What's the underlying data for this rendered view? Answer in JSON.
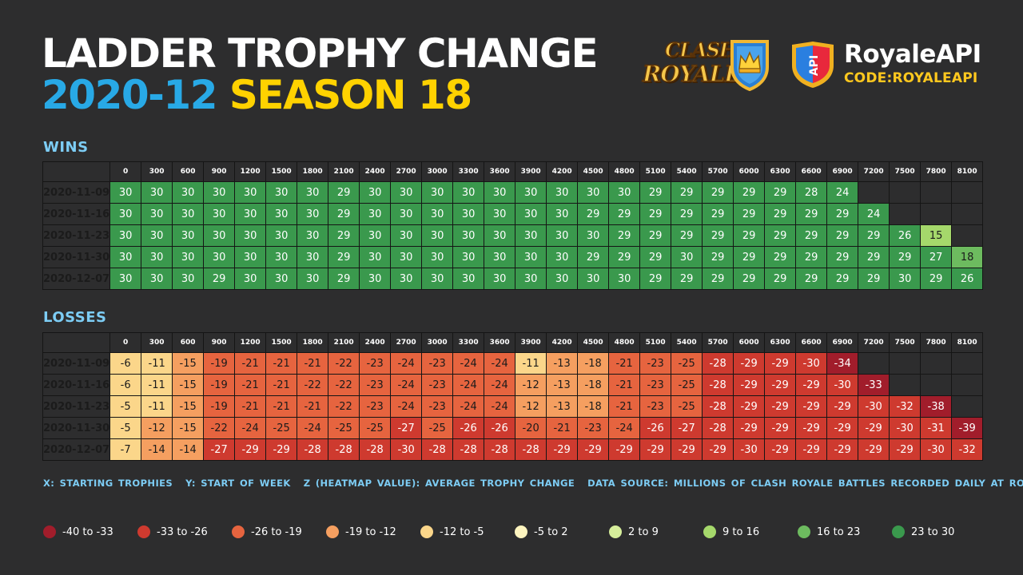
{
  "title": {
    "line1": "LADDER TROPHY CHANGE",
    "date": "2020-12",
    "season": "SEASON 18"
  },
  "logos": {
    "clash_royale": {
      "word1": "CLASH",
      "word2": "ROYALE",
      "icon": "crown-shield-icon"
    },
    "royaleapi": {
      "name": "RoyaleAPI",
      "code": "CODE:ROYALEAPI",
      "shield_text": "API",
      "icon": "api-shield-icon"
    }
  },
  "notes": {
    "x": "X: STARTING TROPHIES",
    "y": "Y: START OF WEEK",
    "z": "Z (HEATMAP VALUE): AVERAGE TROPHY CHANGE",
    "source": "DATA SOURCE: MILLIONS OF CLASH ROYALE BATTLES RECORDED DAILY AT ROYALEAPI"
  },
  "legend": [
    {
      "label": "-40 to -33",
      "color": "#a11d2b"
    },
    {
      "label": "-33 to -26",
      "color": "#ce3a2f"
    },
    {
      "label": "-26 to -19",
      "color": "#e6643f"
    },
    {
      "label": "-19 to -12",
      "color": "#f59f60"
    },
    {
      "label": "-12 to -5",
      "color": "#fbd68a"
    },
    {
      "label": "-5 to 2",
      "color": "#fdf4bf"
    },
    {
      "label": "2 to 9",
      "color": "#d6ee9b"
    },
    {
      "label": "9 to 16",
      "color": "#a5d86b"
    },
    {
      "label": "16 to 23",
      "color": "#6dbb5f"
    },
    {
      "label": "23 to 30",
      "color": "#3a994d"
    }
  ],
  "chart_data": [
    {
      "type": "heatmap",
      "title": "WINS",
      "x": [
        "0",
        "300",
        "600",
        "900",
        "1200",
        "1500",
        "1800",
        "2100",
        "2400",
        "2700",
        "3000",
        "3300",
        "3600",
        "3900",
        "4200",
        "4500",
        "4800",
        "5100",
        "5400",
        "5700",
        "6000",
        "6300",
        "6600",
        "6900",
        "7200",
        "7500",
        "7800",
        "8100"
      ],
      "y": [
        "2020-11-09",
        "2020-11-16",
        "2020-11-23",
        "2020-11-30",
        "2020-12-07"
      ],
      "z": [
        [
          30,
          30,
          30,
          30,
          30,
          30,
          30,
          29,
          30,
          30,
          30,
          30,
          30,
          30,
          30,
          30,
          30,
          29,
          29,
          29,
          29,
          29,
          28,
          24,
          null,
          null,
          null,
          null
        ],
        [
          30,
          30,
          30,
          30,
          30,
          30,
          30,
          29,
          30,
          30,
          30,
          30,
          30,
          30,
          30,
          29,
          29,
          29,
          29,
          29,
          29,
          29,
          29,
          29,
          24,
          null,
          null,
          null
        ],
        [
          30,
          30,
          30,
          30,
          30,
          30,
          30,
          29,
          30,
          30,
          30,
          30,
          30,
          30,
          30,
          30,
          29,
          29,
          29,
          29,
          29,
          29,
          29,
          29,
          29,
          26,
          15,
          null
        ],
        [
          30,
          30,
          30,
          30,
          30,
          30,
          30,
          29,
          30,
          30,
          30,
          30,
          30,
          30,
          30,
          29,
          29,
          29,
          30,
          29,
          29,
          29,
          29,
          29,
          29,
          29,
          27,
          18
        ],
        [
          30,
          30,
          30,
          29,
          30,
          30,
          30,
          29,
          30,
          30,
          30,
          30,
          30,
          30,
          30,
          30,
          30,
          29,
          29,
          29,
          29,
          29,
          29,
          29,
          29,
          30,
          29,
          26
        ]
      ]
    },
    {
      "type": "heatmap",
      "title": "LOSSES",
      "x": [
        "0",
        "300",
        "600",
        "900",
        "1200",
        "1500",
        "1800",
        "2100",
        "2400",
        "2700",
        "3000",
        "3300",
        "3600",
        "3900",
        "4200",
        "4500",
        "4800",
        "5100",
        "5400",
        "5700",
        "6000",
        "6300",
        "6600",
        "6900",
        "7200",
        "7500",
        "7800",
        "8100"
      ],
      "y": [
        "2020-11-09",
        "2020-11-16",
        "2020-11-23",
        "2020-11-30",
        "2020-12-07"
      ],
      "z": [
        [
          -6,
          -11,
          -15,
          -19,
          -21,
          -21,
          -21,
          -22,
          -23,
          -24,
          -23,
          -24,
          -24,
          -11,
          -13,
          -18,
          -21,
          -23,
          -25,
          -28,
          -29,
          -29,
          -30,
          -34,
          null,
          null,
          null,
          null
        ],
        [
          -6,
          -11,
          -15,
          -19,
          -21,
          -21,
          -22,
          -22,
          -23,
          -24,
          -23,
          -24,
          -24,
          -12,
          -13,
          -18,
          -21,
          -23,
          -25,
          -28,
          -29,
          -29,
          -29,
          -30,
          -33,
          null,
          null,
          null
        ],
        [
          -5,
          -11,
          -15,
          -19,
          -21,
          -21,
          -21,
          -22,
          -23,
          -24,
          -23,
          -24,
          -24,
          -12,
          -13,
          -18,
          -21,
          -23,
          -25,
          -28,
          -29,
          -29,
          -29,
          -29,
          -30,
          -32,
          -38,
          null
        ],
        [
          -5,
          -12,
          -15,
          -22,
          -24,
          -25,
          -24,
          -25,
          -25,
          -27,
          -25,
          -26,
          -26,
          -20,
          -21,
          -23,
          -24,
          -26,
          -27,
          -28,
          -29,
          -29,
          -29,
          -29,
          -29,
          -30,
          -31,
          -39
        ],
        [
          -7,
          -14,
          -14,
          -27,
          -29,
          -29,
          -28,
          -28,
          -28,
          -30,
          -28,
          -28,
          -28,
          -28,
          -29,
          -29,
          -29,
          -29,
          -29,
          -29,
          -30,
          -29,
          -29,
          -29,
          -29,
          -29,
          -30,
          -32
        ]
      ]
    }
  ]
}
